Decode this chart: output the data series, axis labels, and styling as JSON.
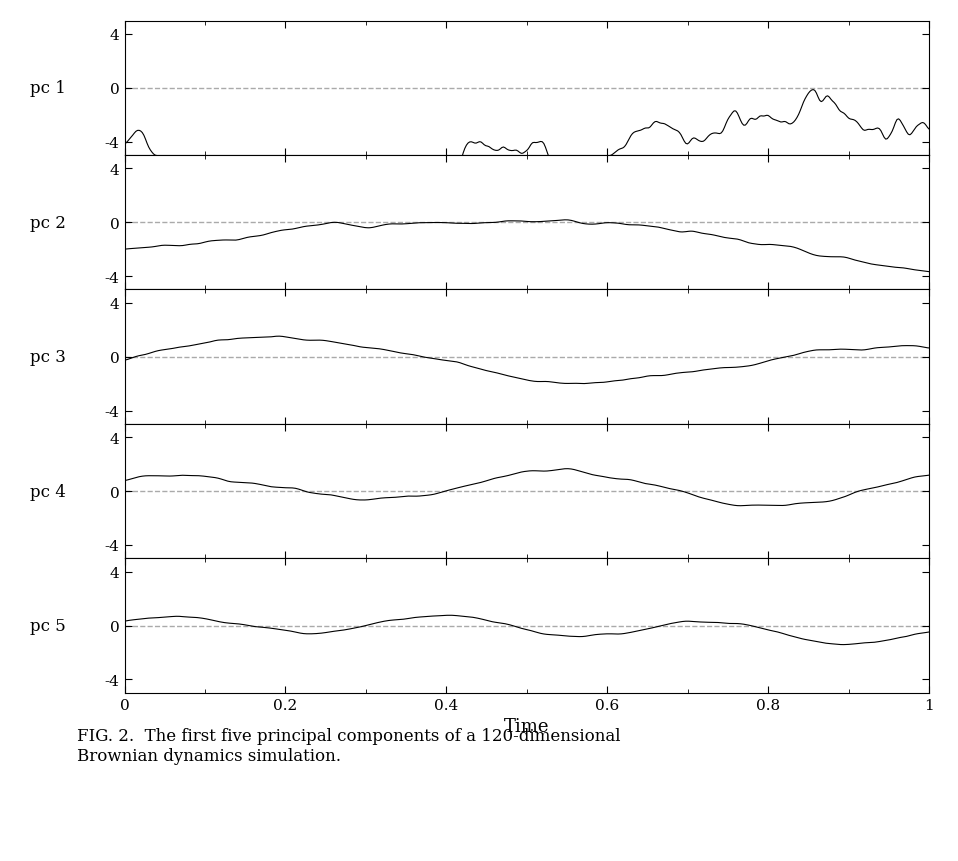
{
  "title": "",
  "xlabel": "Time",
  "ylabel_labels": [
    "pc 1",
    "pc 2",
    "pc 3",
    "pc 4",
    "pc 5"
  ],
  "ylim": [
    -5,
    5
  ],
  "xlim": [
    0,
    1
  ],
  "yticks": [
    -4,
    0,
    4
  ],
  "xticks": [
    0,
    0.2,
    0.4,
    0.6,
    0.8,
    1.0
  ],
  "xtick_labels": [
    "0",
    "0.2",
    "0.4",
    "0.6",
    "0.8",
    "1"
  ],
  "line_color": "#000000",
  "dashed_color": "#aaaaaa",
  "background_color": "#ffffff",
  "caption": "FIG. 2.  The first five principal components of a 120-dimensional\nBrownian dynamics simulation.",
  "n_points": 500,
  "figsize": [
    9.58,
    8.62
  ],
  "dpi": 100
}
